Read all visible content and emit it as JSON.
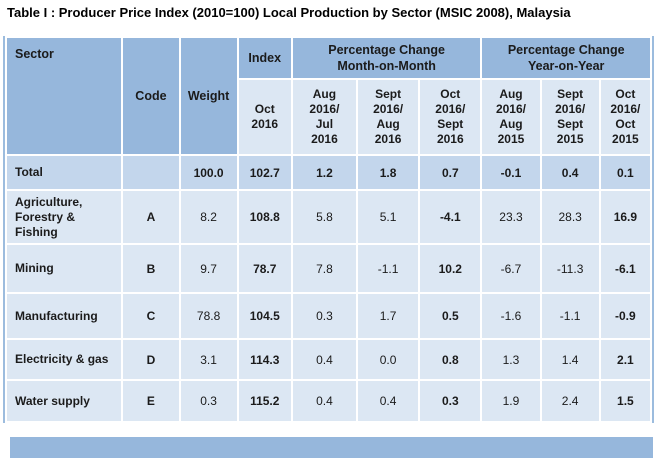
{
  "title": "Table I : Producer Price Index (2010=100) Local Production by Sector (MSIC 2008), Malaysia",
  "colors": {
    "header_fill": "#96b7dc",
    "subheader_fill": "#dce7f3",
    "data_row_fill": "#dce7f3",
    "total_row_fill": "#c3d6ec",
    "footer_bar_fill": "#96b7dc",
    "text": "#1b1b1b"
  },
  "table": {
    "header": {
      "sector": "Sector",
      "code": "Code",
      "weight": "Weight",
      "index": "Index",
      "mom_group": "Percentage Change\nMonth-on-Month",
      "yoy_group": "Percentage Change\nYear-on-Year",
      "index_period": "Oct\n2016",
      "mom_periods": [
        "Aug\n2016/\nJul\n2016",
        "Sept\n2016/\nAug\n2016",
        "Oct\n2016/\nSept\n2016"
      ],
      "yoy_periods": [
        "Aug\n2016/\nAug\n2015",
        "Sept\n2016/\nSept\n2015",
        "Oct\n2016/\nOct\n2015"
      ]
    },
    "rows": [
      {
        "sector": "Total",
        "code": "",
        "weight": "100.0",
        "index": "102.7",
        "mom": [
          "1.2",
          "1.8",
          "0.7"
        ],
        "yoy": [
          "-0.1",
          "0.4",
          "0.1"
        ],
        "total": true
      },
      {
        "sector": "Agriculture,\nForestry &\nFishing",
        "code": "A",
        "weight": "8.2",
        "index": "108.8",
        "mom": [
          "5.8",
          "5.1",
          "-4.1"
        ],
        "yoy": [
          "23.3",
          "28.3",
          "16.9"
        ],
        "total": false
      },
      {
        "sector": "Mining",
        "code": "B",
        "weight": "9.7",
        "index": "78.7",
        "mom": [
          "7.8",
          "-1.1",
          "10.2"
        ],
        "yoy": [
          "-6.7",
          "-11.3",
          "-6.1"
        ],
        "total": false
      },
      {
        "sector": "Manufacturing",
        "code": "C",
        "weight": "78.8",
        "index": "104.5",
        "mom": [
          "0.3",
          "1.7",
          "0.5"
        ],
        "yoy": [
          "-1.6",
          "-1.1",
          "-0.9"
        ],
        "total": false
      },
      {
        "sector": "Electricity & gas",
        "code": "D",
        "weight": "3.1",
        "index": "114.3",
        "mom": [
          "0.4",
          "0.0",
          "0.8"
        ],
        "yoy": [
          "1.3",
          "1.4",
          "2.1"
        ],
        "total": false
      },
      {
        "sector": "Water supply",
        "code": "E",
        "weight": "0.3",
        "index": "115.2",
        "mom": [
          "0.4",
          "0.4",
          "0.3"
        ],
        "yoy": [
          "1.9",
          "2.4",
          "1.5"
        ],
        "total": false
      }
    ]
  },
  "chart_data": {
    "type": "table",
    "title": "Table I : Producer Price Index (2010=100) Local Production by Sector (MSIC 2008), Malaysia",
    "columns": [
      "Sector",
      "Code",
      "Weight",
      "Index Oct 2016",
      "MoM % Aug 2016/Jul 2016",
      "MoM % Sept 2016/Aug 2016",
      "MoM % Oct 2016/Sept 2016",
      "YoY % Aug 2016/Aug 2015",
      "YoY % Sept 2016/Sept 2015",
      "YoY % Oct 2016/Oct 2015"
    ],
    "rows": [
      [
        "Total",
        "",
        100.0,
        102.7,
        1.2,
        1.8,
        0.7,
        -0.1,
        0.4,
        0.1
      ],
      [
        "Agriculture, Forestry & Fishing",
        "A",
        8.2,
        108.8,
        5.8,
        5.1,
        -4.1,
        23.3,
        28.3,
        16.9
      ],
      [
        "Mining",
        "B",
        9.7,
        78.7,
        7.8,
        -1.1,
        10.2,
        -6.7,
        -11.3,
        -6.1
      ],
      [
        "Manufacturing",
        "C",
        78.8,
        104.5,
        0.3,
        1.7,
        0.5,
        -1.6,
        -1.1,
        -0.9
      ],
      [
        "Electricity & gas",
        "D",
        3.1,
        114.3,
        0.4,
        0.0,
        0.8,
        1.3,
        1.4,
        2.1
      ],
      [
        "Water supply",
        "E",
        0.3,
        115.2,
        0.4,
        0.4,
        0.3,
        1.9,
        2.4,
        1.5
      ]
    ]
  }
}
